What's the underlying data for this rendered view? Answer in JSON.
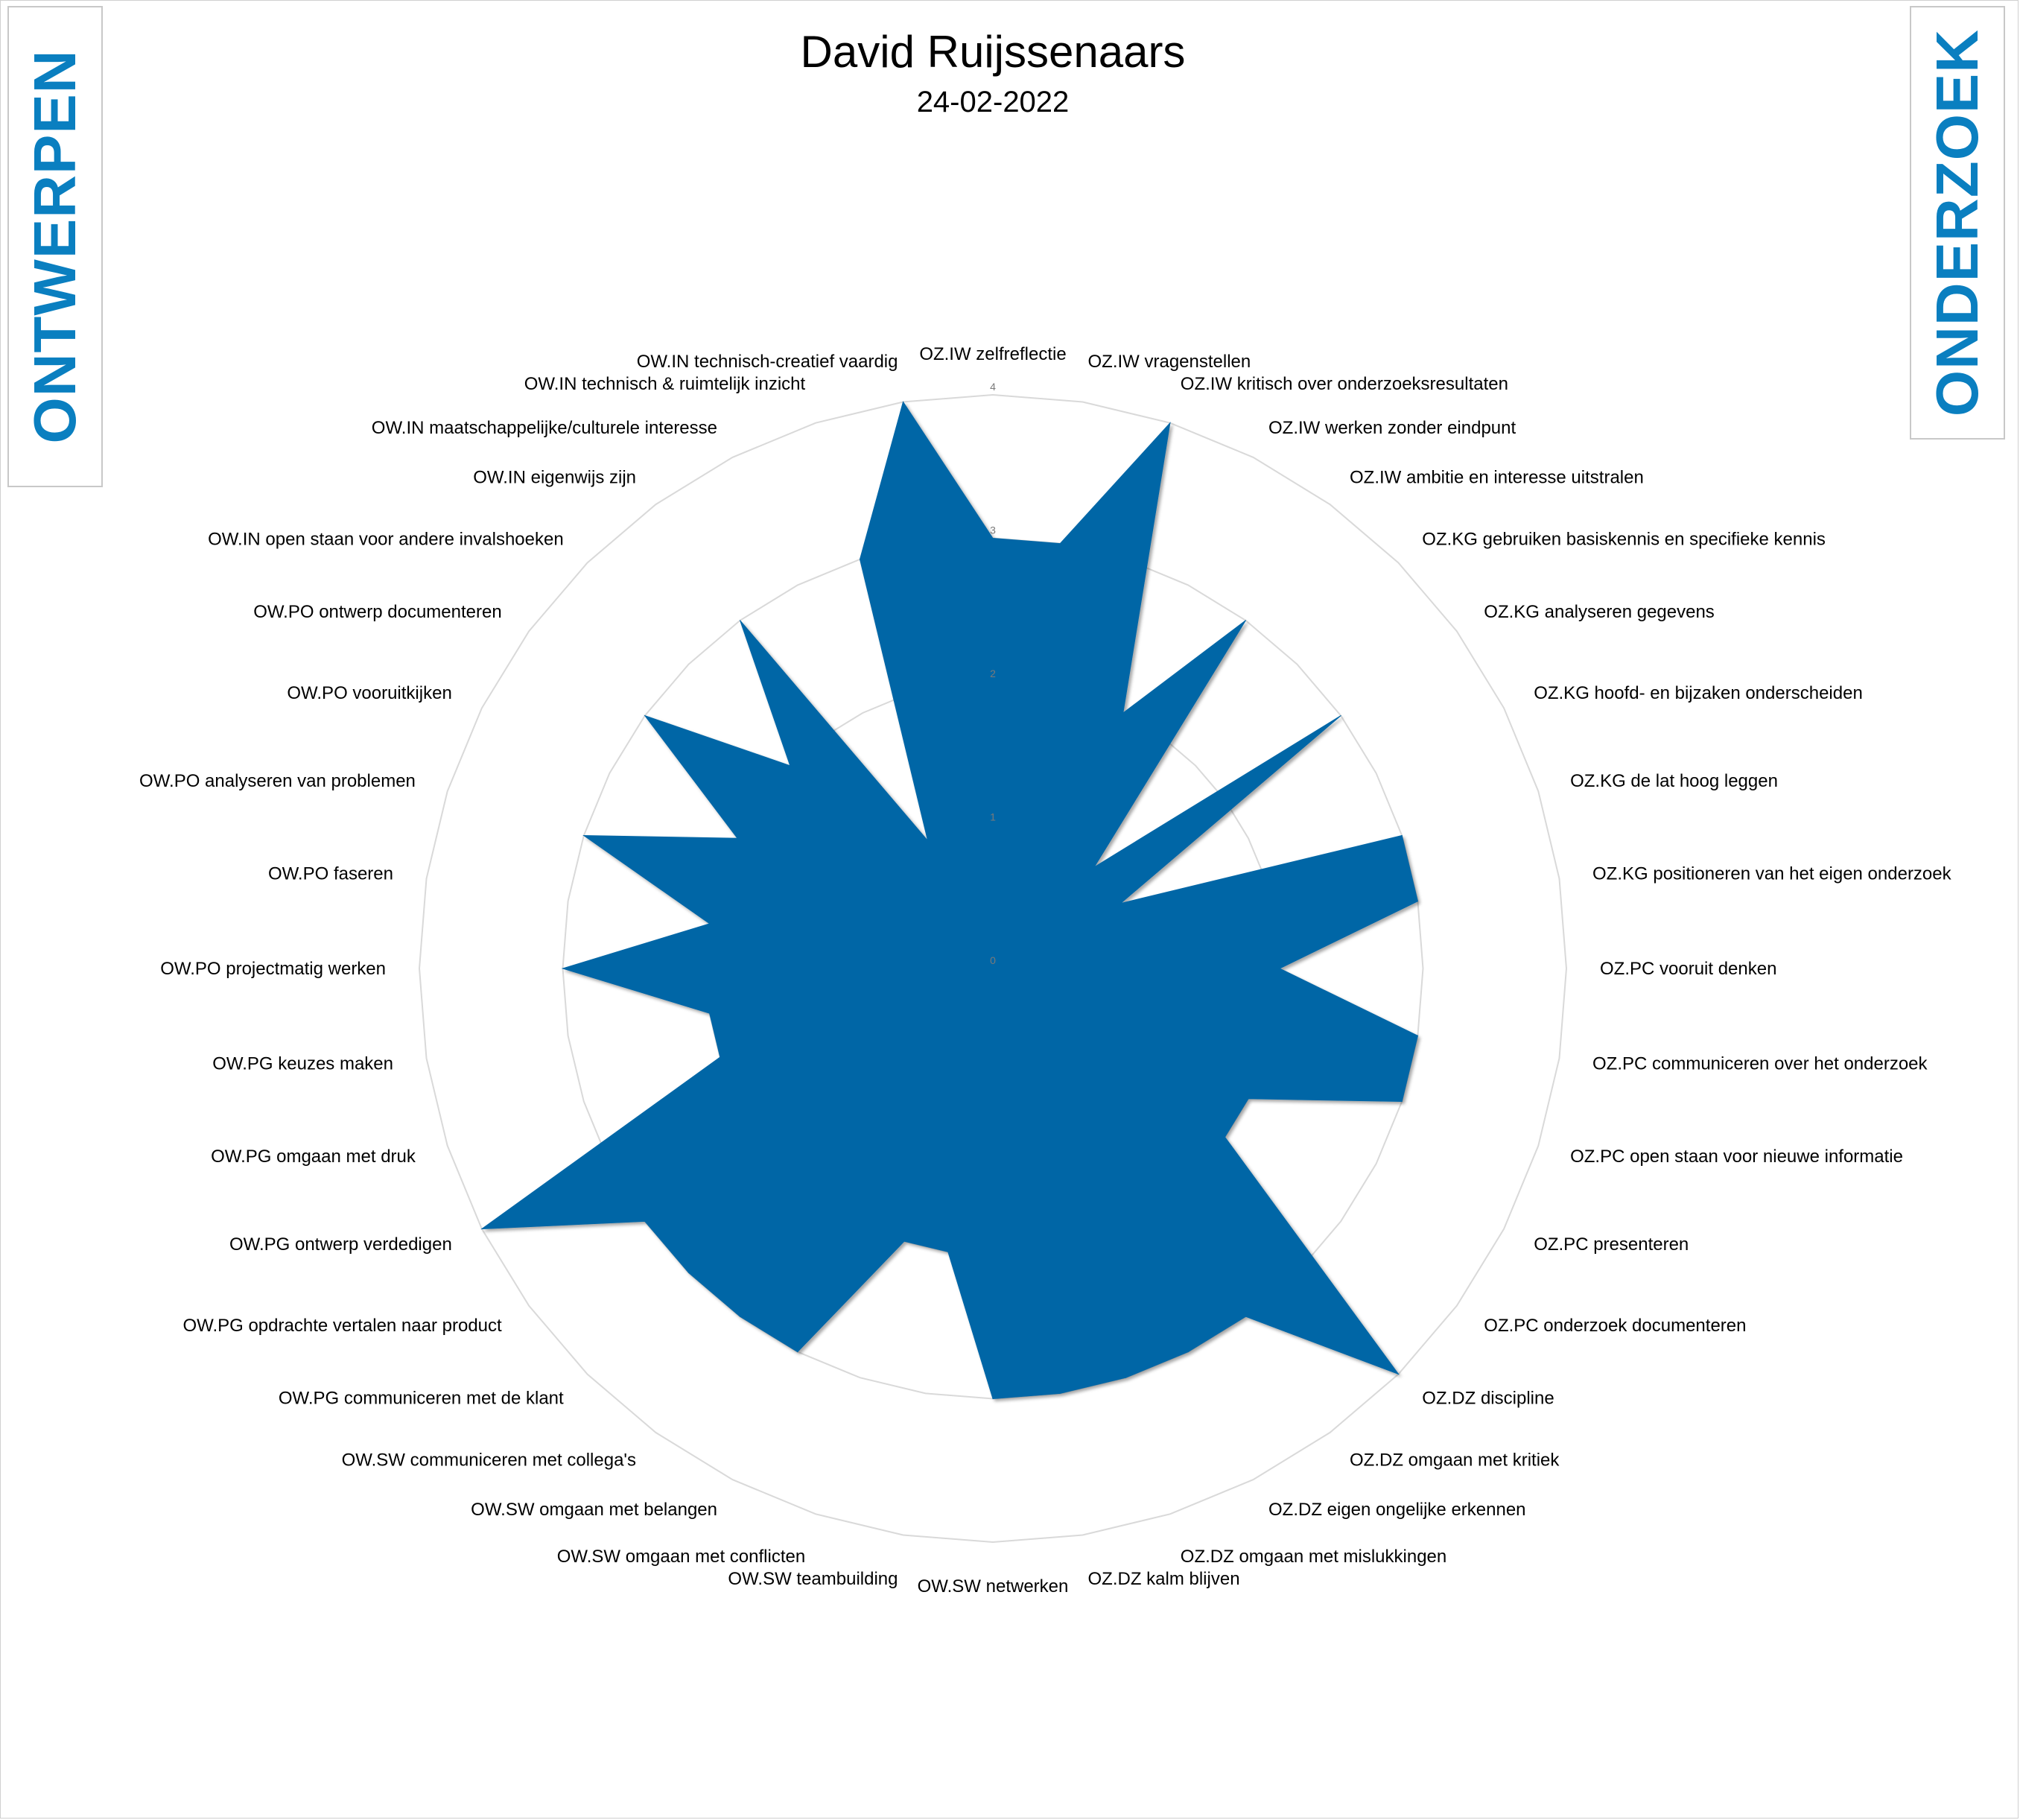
{
  "side_labels": {
    "left": "ONTWERPEN",
    "right": "ONDERZOEK"
  },
  "colors": {
    "fill": "#0066a6",
    "side_text": "#0a7fc0",
    "grid": "#d9d9d9"
  },
  "chart_data": {
    "type": "radar",
    "title": "David Ruijssenaars",
    "subtitle": "24-02-2022",
    "rlim": [
      0,
      4
    ],
    "ticks": [
      0,
      1,
      2,
      3,
      4
    ],
    "grid": true,
    "categories": [
      "OZ.IW zelfreflectie",
      "OZ.IW vragenstellen",
      "OZ.IW kritisch over onderzoeksresultaten",
      "OZ.IW werken zonder eindpunt",
      "OZ.IW ambitie en interesse uitstralen",
      "OZ.KG gebruiken basiskennis en specifieke kennis",
      "OZ.KG analyseren gegevens",
      "OZ.KG hoofd- en bijzaken onderscheiden",
      "OZ.KG de lat hoog leggen",
      "OZ.KG positioneren van het eigen onderzoek",
      "OZ.PC vooruit denken",
      "OZ.PC communiceren over het onderzoek",
      "OZ.PC open staan voor nieuwe informatie",
      "OZ.PC presenteren",
      "OZ.PC onderzoek documenteren",
      "OZ.DZ discipline",
      "OZ.DZ omgaan met kritiek",
      "OZ.DZ eigen ongelijke erkennen",
      "OZ.DZ omgaan met mislukkingen",
      "OZ.DZ kalm blijven",
      "OW.SW netwerken",
      "OW.SW teambuilding",
      "OW.SW omgaan met conflicten",
      "OW.SW omgaan met belangen",
      "OW.SW communiceren met collega's",
      "OW.PG communiceren met de klant",
      "OW.PG opdrachte vertalen naar product",
      "OW.PG ontwerp verdedigen",
      "OW.PG omgaan met druk",
      "OW.PG keuzes maken",
      "OW.PO projectmatig werken",
      "OW.PO faseren",
      "OW.PO analyseren van problemen",
      "OW.PO vooruitkijken",
      "OW.PO ontwerp documenteren",
      "OW.IN open staan voor andere invalshoeken",
      "OW.IN eigenwijs zijn",
      "OW.IN maatschappelijke/culturele interesse",
      "OW.IN technisch & ruimtelijk inzicht",
      "OW.IN technisch-creatief vaardig"
    ],
    "series": [
      {
        "values": [
          3,
          3,
          4,
          2,
          3,
          1,
          3,
          1,
          3,
          3,
          2,
          3,
          3,
          2,
          2,
          4,
          3,
          3,
          3,
          3,
          3,
          2,
          2,
          3,
          3,
          3,
          3,
          4,
          2,
          2,
          3,
          2,
          3,
          2,
          3,
          2,
          3,
          1,
          3,
          4
        ]
      }
    ]
  }
}
